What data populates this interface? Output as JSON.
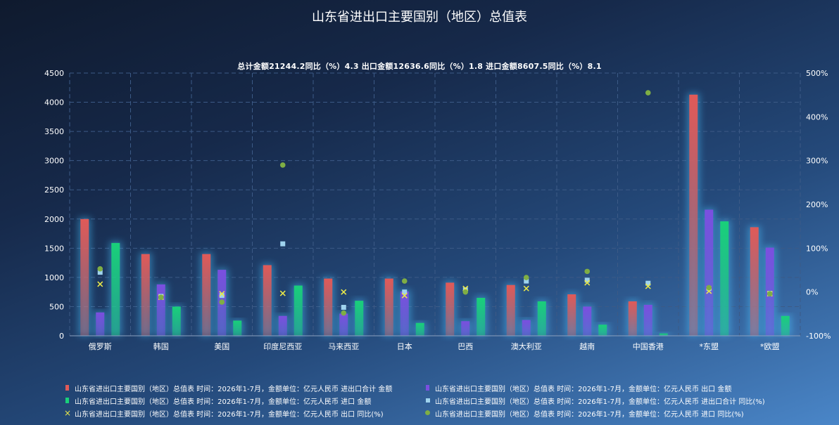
{
  "title": "山东省进出口主要国别（地区）总值表",
  "subtitle": "总计金额21244.2同比（%）4.3 出口金额12636.6同比（%）1.8 进口金额8607.5同比（%）8.1",
  "colors": {
    "total": "#e05a58",
    "export": "#7b4fe0",
    "import": "#19d07a",
    "total_yoy": "#9fd3ee",
    "export_yoy": "#e8e84a",
    "import_yoy": "#7fae44",
    "grid": "#3c5a86"
  },
  "chart_data": {
    "type": "bar",
    "categories": [
      "俄罗斯",
      "韩国",
      "美国",
      "印度尼西亚",
      "马来西亚",
      "日本",
      "巴西",
      "澳大利亚",
      "越南",
      "中国香港",
      "*东盟",
      "*欧盟"
    ],
    "y_left": {
      "ticks": [
        "0",
        "500",
        "1000",
        "1500",
        "2000",
        "2500",
        "3000",
        "3500",
        "4000",
        "4500"
      ],
      "ylim": [
        0,
        4500
      ]
    },
    "y_right": {
      "ticks": [
        "-100%",
        "0%",
        "100%",
        "200%",
        "300%",
        "400%",
        "500%"
      ],
      "ylim": [
        -100,
        500
      ]
    },
    "grid": true,
    "legend_position": "bottom",
    "series": [
      {
        "name": "山东省进出口主要国别（地区）总值表 时间：2026年1-7月，金额单位：亿元人民币 进出口合计 金额",
        "type": "bar",
        "axis": "left",
        "color_key": "total",
        "values": [
          2000,
          1400,
          1400,
          1210,
          980,
          980,
          910,
          870,
          710,
          590,
          4130,
          1860
        ]
      },
      {
        "name": "山东省进出口主要国别（地区）总值表 时间：2026年1-7月，金额单位：亿元人民币 出口 金额",
        "type": "bar",
        "axis": "left",
        "color_key": "export",
        "values": [
          400,
          880,
          1130,
          340,
          380,
          760,
          250,
          270,
          500,
          530,
          2160,
          1510
        ]
      },
      {
        "name": "山东省进出口主要国别（地区）总值表 时间：2026年1-7月，金额单位：亿元人民币 进口 金额",
        "type": "bar",
        "axis": "left",
        "color_key": "import",
        "values": [
          1590,
          500,
          260,
          860,
          600,
          220,
          650,
          590,
          190,
          40,
          1960,
          340
        ]
      },
      {
        "name": "山东省进出口主要国别（地区）总值表 时间：2026年1-7月，金额单位：亿元人民币 进出口合计 同比(%)",
        "type": "scatter",
        "axis": "right",
        "marker": "square",
        "color_key": "total_yoy",
        "values": [
          45,
          -10,
          -8,
          110,
          -35,
          0,
          5,
          25,
          27,
          20,
          8,
          -3
        ]
      },
      {
        "name": "山东省进出口主要国别（地区）总值表 时间：2026年1-7月，金额单位：亿元人民币 出口 同比(%)",
        "type": "scatter",
        "axis": "right",
        "marker": "x",
        "color_key": "export_yoy",
        "values": [
          18,
          -12,
          -4,
          -3,
          0,
          -8,
          8,
          8,
          21,
          13,
          2,
          -4
        ]
      },
      {
        "name": "山东省进出口主要国别（地区）总值表 时间：2026年1-7月，金额单位：亿元人民币 进口 同比(%)",
        "type": "scatter",
        "axis": "right",
        "marker": "circle",
        "color_key": "import_yoy",
        "values": [
          53,
          -12,
          -23,
          290,
          -48,
          25,
          0,
          33,
          47,
          455,
          10,
          -4
        ]
      }
    ]
  }
}
